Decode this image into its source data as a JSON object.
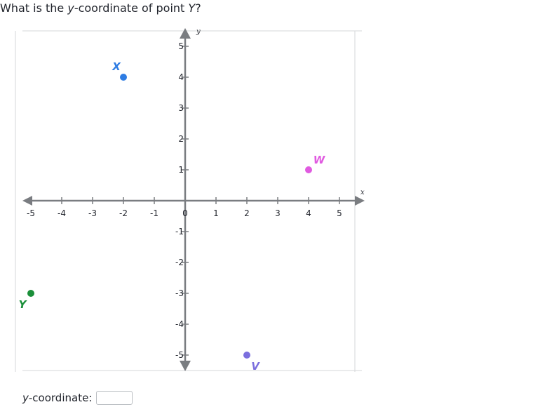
{
  "question": {
    "prefix": "What is the ",
    "variable": "y",
    "middle": "-coordinate of point ",
    "point": "Y",
    "suffix": "?"
  },
  "chart_data": {
    "type": "scatter",
    "title": "",
    "xlabel": "x",
    "ylabel": "y",
    "xlim": [
      -5,
      5
    ],
    "ylim": [
      -5,
      5
    ],
    "grid": true,
    "x_ticks": [
      -5,
      -4,
      -3,
      -2,
      -1,
      0,
      1,
      2,
      3,
      4,
      5
    ],
    "y_ticks": [
      -5,
      -4,
      -3,
      -2,
      -1,
      1,
      2,
      3,
      4,
      5
    ],
    "points": [
      {
        "label": "X",
        "x": -2,
        "y": 4,
        "color": "#2e7ce3"
      },
      {
        "label": "W",
        "x": 4,
        "y": 1,
        "color": "#e05ae0"
      },
      {
        "label": "Y",
        "x": -5,
        "y": -3,
        "color": "#1b8f3a"
      },
      {
        "label": "V",
        "x": 2,
        "y": -5,
        "color": "#7b6fde"
      }
    ]
  },
  "answer": {
    "variable": "y",
    "label_suffix": "-coordinate:",
    "value": ""
  }
}
